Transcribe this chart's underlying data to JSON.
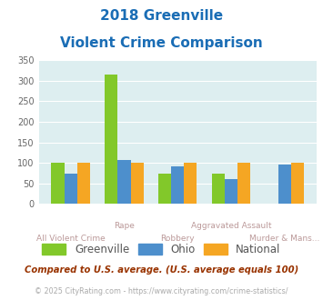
{
  "title_line1": "2018 Greenville",
  "title_line2": "Violent Crime Comparison",
  "categories": [
    "All Violent Crime",
    "Rape",
    "Robbery",
    "Aggravated Assault",
    "Murder & Mans..."
  ],
  "cat_labels_top": [
    "",
    "Rape",
    "",
    "Aggravated Assault",
    ""
  ],
  "cat_labels_bot": [
    "All Violent Crime",
    "",
    "Robbery",
    "",
    "Murder & Mans..."
  ],
  "greenville": [
    100,
    315,
    73,
    73,
    0
  ],
  "ohio": [
    73,
    107,
    92,
    60,
    97
  ],
  "national": [
    100,
    100,
    100,
    100,
    100
  ],
  "greenville_color": "#82c82a",
  "ohio_color": "#4d8fcc",
  "national_color": "#f5a623",
  "ylim": [
    0,
    350
  ],
  "yticks": [
    0,
    50,
    100,
    150,
    200,
    250,
    300,
    350
  ],
  "bg_color": "#ddeef0",
  "title_color": "#1a6db5",
  "legend_labels": [
    "Greenville",
    "Ohio",
    "National"
  ],
  "footnote1": "Compared to U.S. average. (U.S. average equals 100)",
  "footnote2": "© 2025 CityRating.com - https://www.cityrating.com/crime-statistics/",
  "footnote1_color": "#993300",
  "footnote2_color": "#aaaaaa",
  "label_color": "#bb9999"
}
